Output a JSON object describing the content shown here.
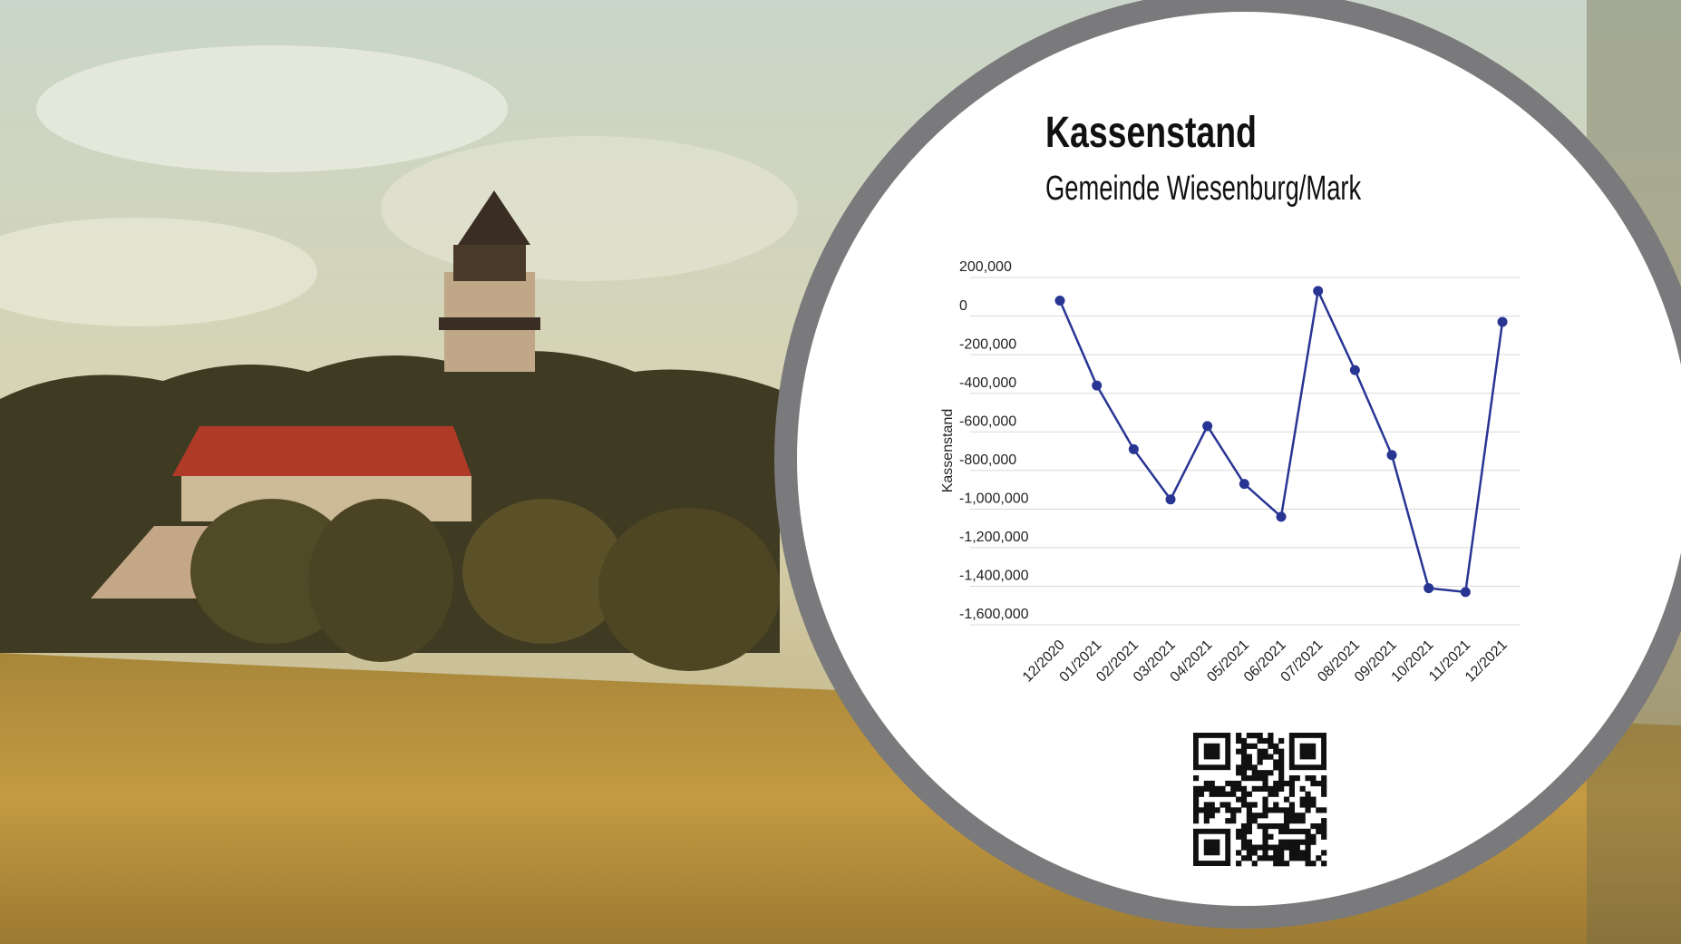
{
  "chart_data": {
    "type": "line",
    "title": "Kassenstand",
    "subtitle": "Gemeinde Wiesenburg/Mark",
    "y_label": "Kassenstand",
    "categories": [
      "12/2020",
      "01/2021",
      "02/2021",
      "03/2021",
      "04/2021",
      "05/2021",
      "06/2021",
      "07/2021",
      "08/2021",
      "09/2021",
      "10/2021",
      "11/2021",
      "12/2021"
    ],
    "series": [
      {
        "name": "Kassenstand",
        "color": "#283593",
        "values": [
          80000,
          -360000,
          -690000,
          -950000,
          -570000,
          -870000,
          -1040000,
          130000,
          -280000,
          -720000,
          -1410000,
          -1430000,
          -30000
        ]
      }
    ],
    "ylim": [
      -1600000,
      200000
    ],
    "yticks": [
      {
        "value": 200000,
        "label": "200,000"
      },
      0,
      {
        "value": -200000,
        "label": "-200,000"
      },
      {
        "value": -400000,
        "label": "-400,000"
      },
      {
        "value": -600000,
        "label": "-600,000"
      },
      {
        "value": -800000,
        "label": "-800,000"
      },
      {
        "value": -1000000,
        "label": "-1,000,000"
      },
      {
        "value": -1200000,
        "label": "-1,200,000"
      },
      {
        "value": -1400000,
        "label": "-1,400,000"
      },
      {
        "value": -1600000,
        "label": "-1,600,000"
      }
    ],
    "grid": true
  }
}
